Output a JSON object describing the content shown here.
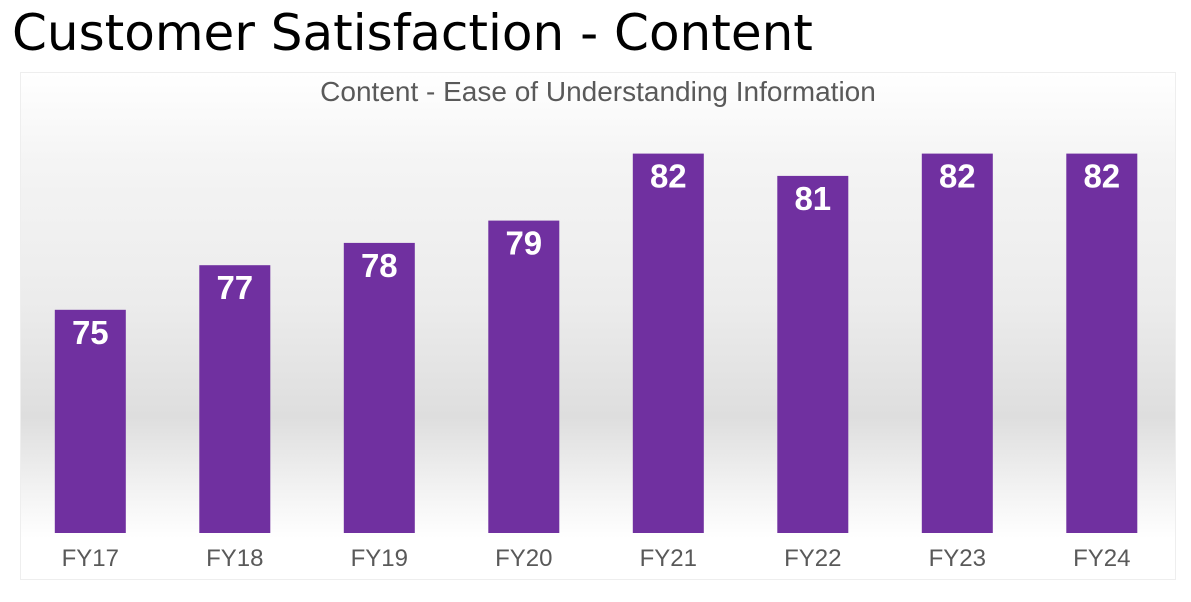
{
  "page": {
    "title": "Customer Satisfaction - Content"
  },
  "chart_data": {
    "type": "bar",
    "title": "Content - Ease of Understanding Information",
    "xlabel": "",
    "ylabel": "",
    "categories": [
      "FY17",
      "FY18",
      "FY19",
      "FY20",
      "FY21",
      "FY22",
      "FY23",
      "FY24"
    ],
    "values": [
      75,
      77,
      78,
      79,
      82,
      81,
      82,
      82
    ],
    "data_labels": [
      "75",
      "77",
      "78",
      "79",
      "82",
      "81",
      "82",
      "82"
    ],
    "ylim": [
      65,
      84
    ],
    "grid": false,
    "legend": "none",
    "bar_color": "#7030a0",
    "label_color": "#ffffff"
  }
}
